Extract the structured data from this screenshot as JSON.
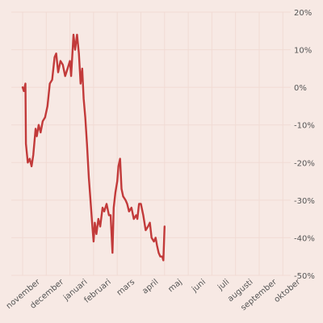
{
  "chart_data": {
    "type": "line",
    "title": "",
    "xlabel": "",
    "ylabel": "",
    "ylim": [
      -50,
      20
    ],
    "y_ticks": [
      20,
      10,
      0,
      -10,
      -20,
      -30,
      -40,
      -50
    ],
    "y_tick_labels": [
      "20%",
      "10%",
      "0%",
      "-10%",
      "-20%",
      "-30%",
      "-40%",
      "-50%"
    ],
    "y_axis_side": "right",
    "x_tick_labels": [
      "november",
      "december",
      "januari",
      "februari",
      "mars",
      "april",
      "maj",
      "juni",
      "juli",
      "augusti",
      "september",
      "oktober"
    ],
    "grid": true,
    "legend": "none",
    "colors": {
      "line": "#c23a3a",
      "background": "#f7e9e4",
      "grid": "#f1dbd4",
      "text": "#555555"
    },
    "series": [
      {
        "values": [
          [
            0.0,
            0
          ],
          [
            0.05,
            -1
          ],
          [
            0.12,
            1
          ],
          [
            0.14,
            -15
          ],
          [
            0.22,
            -20
          ],
          [
            0.3,
            -19
          ],
          [
            0.38,
            -21
          ],
          [
            0.45,
            -18
          ],
          [
            0.55,
            -11
          ],
          [
            0.6,
            -13
          ],
          [
            0.68,
            -10
          ],
          [
            0.76,
            -12
          ],
          [
            0.85,
            -9
          ],
          [
            0.95,
            -8
          ],
          [
            1.05,
            -5
          ],
          [
            1.15,
            1
          ],
          [
            1.25,
            2
          ],
          [
            1.35,
            8
          ],
          [
            1.42,
            9
          ],
          [
            1.5,
            4
          ],
          [
            1.6,
            7
          ],
          [
            1.7,
            6
          ],
          [
            1.8,
            3
          ],
          [
            1.9,
            5
          ],
          [
            2.0,
            7
          ],
          [
            2.05,
            3
          ],
          [
            2.15,
            14
          ],
          [
            2.22,
            10
          ],
          [
            2.3,
            14
          ],
          [
            2.38,
            9
          ],
          [
            2.45,
            1
          ],
          [
            2.52,
            5
          ],
          [
            2.58,
            -3
          ],
          [
            2.65,
            -8
          ],
          [
            2.72,
            -15
          ],
          [
            2.8,
            -24
          ],
          [
            2.88,
            -31
          ],
          [
            2.95,
            -37
          ],
          [
            3.0,
            -41
          ],
          [
            3.05,
            -36
          ],
          [
            3.12,
            -39
          ],
          [
            3.2,
            -35
          ],
          [
            3.28,
            -37
          ],
          [
            3.38,
            -32
          ],
          [
            3.45,
            -33
          ],
          [
            3.55,
            -31
          ],
          [
            3.65,
            -34
          ],
          [
            3.72,
            -34
          ],
          [
            3.8,
            -44
          ],
          [
            3.85,
            -32
          ],
          [
            3.92,
            -28
          ],
          [
            4.0,
            -25
          ],
          [
            4.05,
            -21
          ],
          [
            4.12,
            -19
          ],
          [
            4.18,
            -27
          ],
          [
            4.25,
            -29
          ],
          [
            4.35,
            -30
          ],
          [
            4.42,
            -31
          ],
          [
            4.5,
            -33
          ],
          [
            4.6,
            -32
          ],
          [
            4.7,
            -35
          ],
          [
            4.8,
            -34
          ],
          [
            4.85,
            -35
          ],
          [
            4.92,
            -31
          ],
          [
            5.0,
            -31
          ],
          [
            5.1,
            -34
          ],
          [
            5.2,
            -38
          ],
          [
            5.3,
            -37
          ],
          [
            5.38,
            -36
          ],
          [
            5.45,
            -40
          ],
          [
            5.55,
            -41
          ],
          [
            5.62,
            -40
          ],
          [
            5.68,
            -42
          ],
          [
            5.75,
            -44
          ],
          [
            5.82,
            -45
          ],
          [
            5.9,
            -45
          ],
          [
            5.95,
            -46
          ],
          [
            6.0,
            -37
          ]
        ]
      }
    ]
  }
}
